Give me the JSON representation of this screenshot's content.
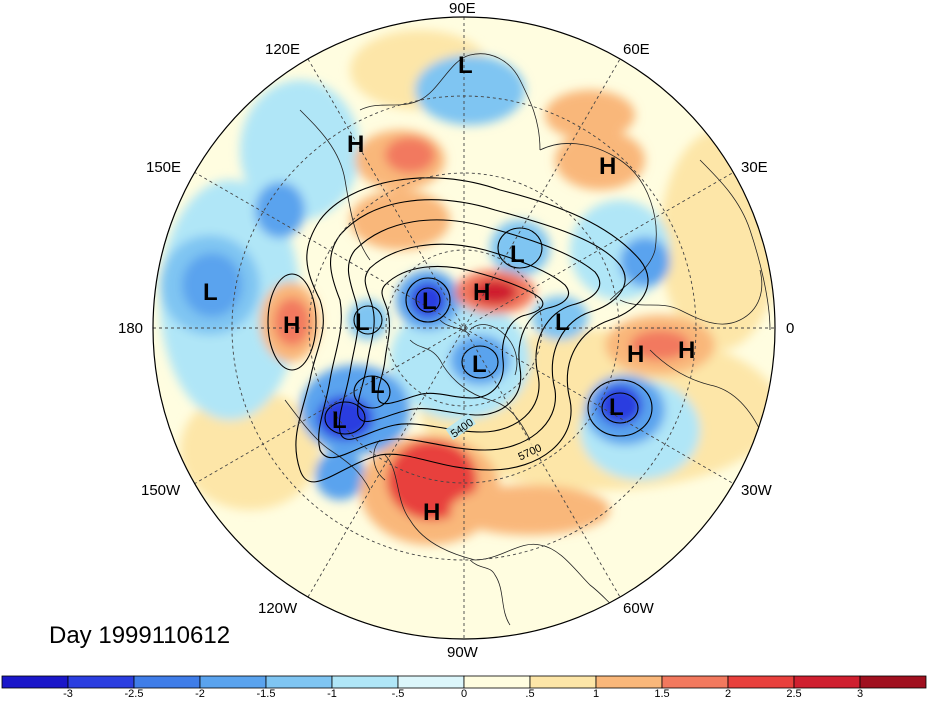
{
  "title": "Day 1999110612",
  "longitude_labels": {
    "lon_90e": "90E",
    "lon_60e": "60E",
    "lon_30e": "30E",
    "lon_0": "0",
    "lon_30w": "30W",
    "lon_60w": "60W",
    "lon_90w": "90W",
    "lon_120w": "120W",
    "lon_150w": "150W",
    "lon_180": "180",
    "lon_150e": "150E",
    "lon_120e": "120E"
  },
  "contour_labels": [
    "5400",
    "5700"
  ],
  "pressure_systems": [
    {
      "type": "L",
      "label": "L"
    },
    {
      "type": "H",
      "label": "H"
    },
    {
      "type": "H",
      "label": "H"
    },
    {
      "type": "L",
      "label": "L"
    },
    {
      "type": "H",
      "label": "H"
    },
    {
      "type": "L",
      "label": "L"
    },
    {
      "type": "L",
      "label": "L"
    },
    {
      "type": "L",
      "label": "L"
    },
    {
      "type": "H",
      "label": "H"
    },
    {
      "type": "L",
      "label": "L"
    },
    {
      "type": "L",
      "label": "L"
    },
    {
      "type": "H",
      "label": "H"
    },
    {
      "type": "H",
      "label": "H"
    },
    {
      "type": "L",
      "label": "L"
    },
    {
      "type": "L",
      "label": "L"
    },
    {
      "type": "L",
      "label": "L"
    },
    {
      "type": "H",
      "label": "H"
    }
  ],
  "colorbar": {
    "labels": [
      "-3",
      "-2.5",
      "-2",
      "-1.5",
      "-1",
      "-.5",
      "0",
      ".5",
      "1",
      "1.5",
      "2",
      "2.5",
      "3"
    ],
    "colors": [
      "#1a17c9",
      "#2b3ee0",
      "#3f7de8",
      "#5aa3ee",
      "#7fc5f2",
      "#b0e6f7",
      "#dcf6fb",
      "#fffde0",
      "#fde6a8",
      "#f9b77a",
      "#f2795e",
      "#e8403c",
      "#cf1f2f",
      "#a0101f"
    ]
  }
}
